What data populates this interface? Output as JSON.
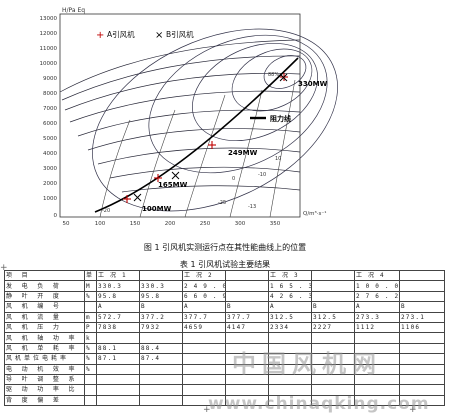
{
  "figure": {
    "y_axis_label": "H/Pa Eq",
    "x_axis_label": "Q/m³·s⁻¹",
    "y_ticks": [
      "13000",
      "12000",
      "11000",
      "10000",
      "9000",
      "8000",
      "7000",
      "6000",
      "5000",
      "4000",
      "3000",
      "2000",
      "1000",
      "0"
    ],
    "x_ticks": [
      "50",
      "100",
      "150",
      "200",
      "250",
      "300",
      "350"
    ],
    "legend": {
      "a_marker": "+",
      "a_label": "A引风机",
      "b_marker": "×",
      "b_label": "B引风机"
    },
    "annotations": {
      "load_330": "330MW",
      "load_249": "249MW",
      "load_165": "165MW",
      "load_100": "100MW",
      "resistance_line": "阻力线",
      "eff_top": "88%",
      "angle_labels": [
        "-20",
        "-25",
        "-13",
        "0",
        "-10",
        "10"
      ]
    }
  },
  "figure_caption": "图 1  引风机实测运行点在其性能曲线上的位置",
  "table_caption": "表 1  引风机试验主要结果",
  "table": {
    "rows": [
      [
        "项          目",
        "单",
        "工          况          1",
        "",
        "工          况          2",
        "",
        "工          况          3",
        "",
        "工          况          4",
        ""
      ],
      [
        "发  电  负  荷",
        "M",
        "330.3",
        "330.3",
        "2 4 9 . 0",
        "",
        "1 6 5 . 3",
        "",
        "1 0 0 . 0",
        ""
      ],
      [
        "静  叶  开  度",
        "%",
        "95.8",
        "95.8",
        "6 6 0 . 9",
        "",
        "4 2 6 . 3",
        "",
        "2 7 6 . 2",
        ""
      ],
      [
        "风    机    编    号",
        "",
        "A",
        "B",
        "A",
        "B",
        "A",
        "B",
        "A",
        "B"
      ],
      [
        "风    机    流    量",
        "m",
        "572.7",
        "377.2",
        "377.7",
        "377.7",
        "312.5",
        "312.5",
        "273.3",
        "273.1"
      ],
      [
        "风    机    压    力",
        "P",
        "7838",
        "7932",
        "4659",
        "4147",
        "2334",
        "2227",
        "1112",
        "1106"
      ],
      [
        "风  机  轴  功  率",
        "k",
        "",
        "",
        "",
        "",
        "",
        "",
        "",
        ""
      ],
      [
        "风  机  单  耗  率",
        "%",
        "88.1",
        "88.4",
        "",
        "",
        "",
        "",
        "",
        ""
      ],
      [
        "风机单位电耗率",
        "%",
        "87.1",
        "87.4",
        "",
        "",
        "",
        "",
        "",
        ""
      ],
      [
        "电  动  机  效  率",
        "%",
        "",
        "",
        "",
        "",
        "",
        "",
        "",
        ""
      ],
      [
        "导  叶  调  整  系  数",
        "",
        "",
        "",
        "",
        "",
        "",
        "",
        "",
        ""
      ],
      [
        "驱  动  功  率  比",
        "",
        "",
        "",
        "",
        "",
        "",
        "",
        "",
        ""
      ],
      [
        "背  度  偏  差",
        "",
        "",
        "",
        "",
        "",
        "",
        "",
        "",
        ""
      ]
    ]
  },
  "watermark": {
    "cn": "中国风机网",
    "url": "www.chinaqking.com"
  },
  "marks": {
    "plus": "+"
  }
}
